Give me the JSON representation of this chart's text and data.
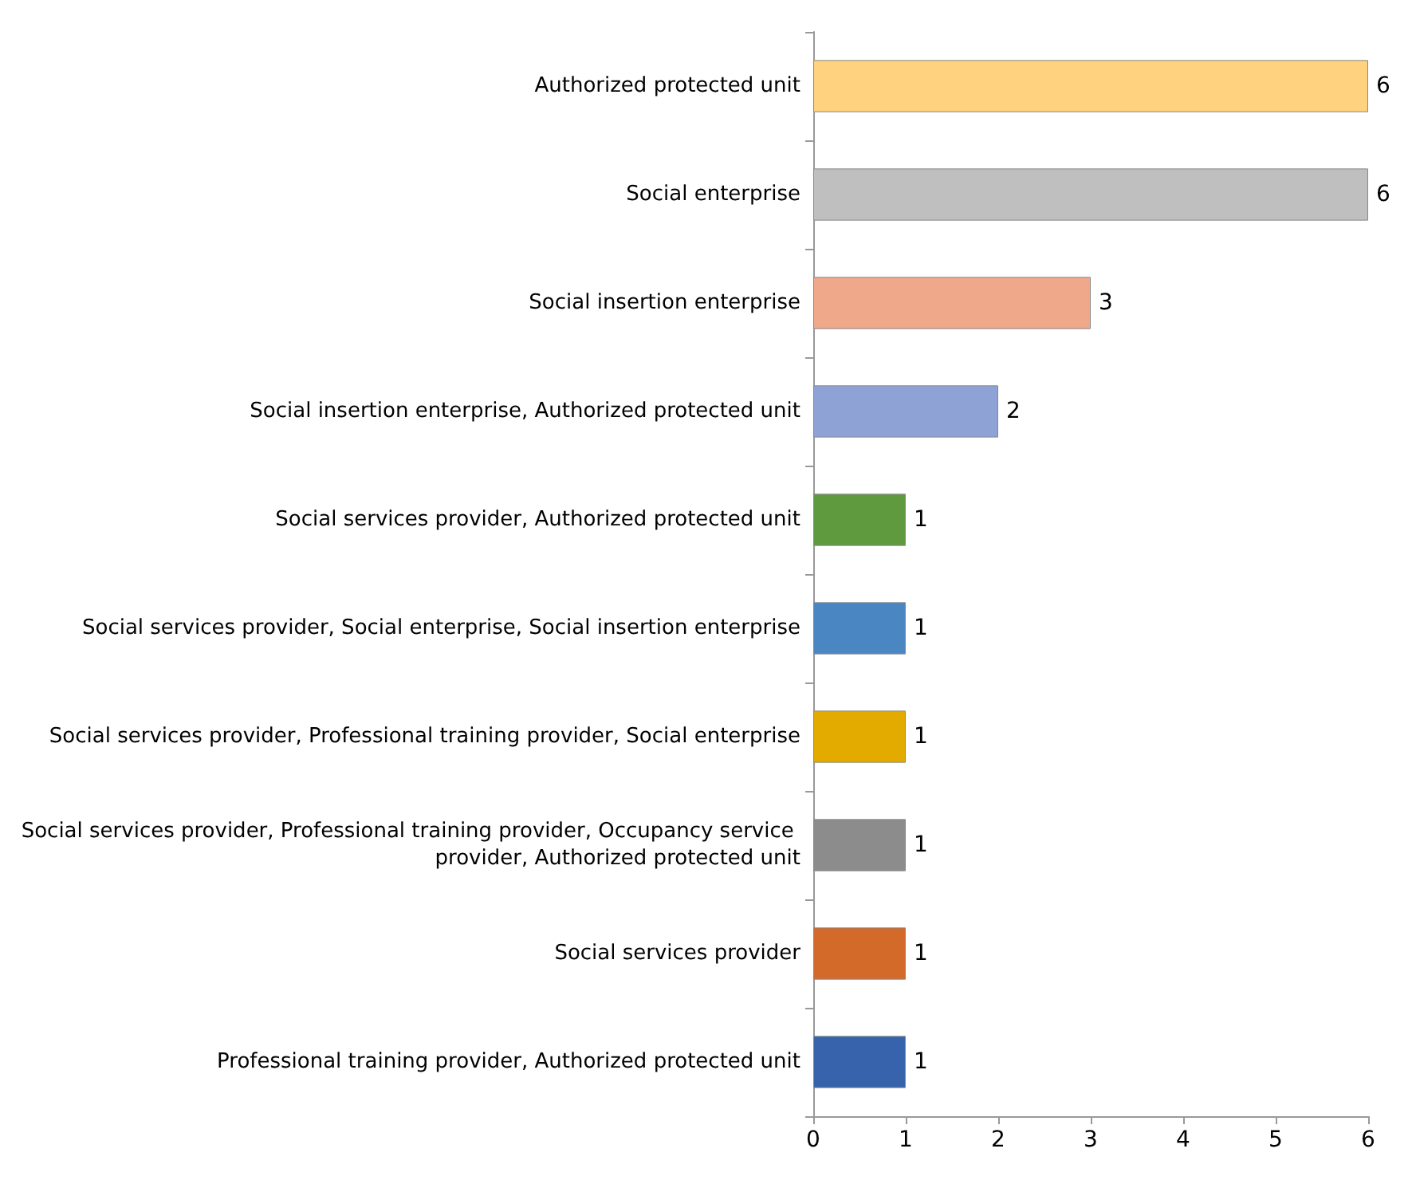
{
  "chart_data": {
    "type": "bar",
    "orientation": "horizontal",
    "categories": [
      "Authorized protected unit",
      "Social enterprise",
      "Social insertion enterprise",
      "Social insertion enterprise, Authorized protected unit",
      "Social services provider, Authorized protected unit",
      "Social services provider, Social enterprise, Social insertion enterprise",
      "Social services provider, Professional training provider, Social enterprise",
      "Social services provider, Professional training provider, Occupancy service provider, Authorized protected unit",
      "Social services provider",
      "Professional training provider, Authorized protected unit"
    ],
    "values": [
      6,
      6,
      3,
      2,
      1,
      1,
      1,
      1,
      1,
      1
    ],
    "colors": [
      "#ffd280",
      "#bfbfbf",
      "#f0a88a",
      "#8ea2d6",
      "#5f9a3f",
      "#4a86c2",
      "#e3ab00",
      "#8c8c8c",
      "#d46a2a",
      "#3763ad"
    ],
    "xlim": [
      0,
      6
    ],
    "xticks": [
      0,
      1,
      2,
      3,
      4,
      5,
      6
    ],
    "grid": false,
    "data_labels": true
  }
}
